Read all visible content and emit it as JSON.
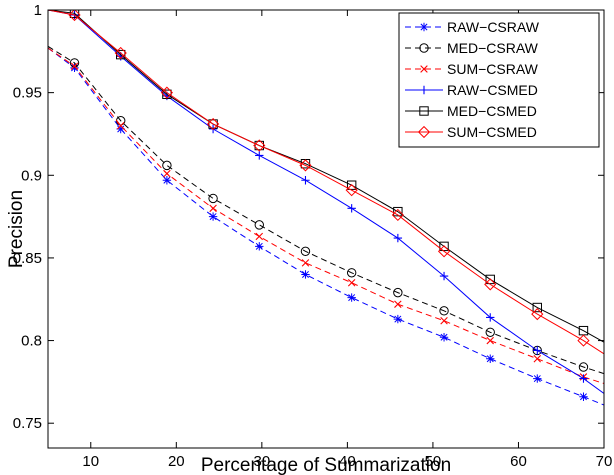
{
  "chart_data": {
    "type": "line",
    "title": "",
    "xlabel": "Percentage of Summarization",
    "ylabel": "Precision",
    "xlim": [
      5,
      70
    ],
    "ylim": [
      0.735,
      1.0
    ],
    "xticks": [
      10,
      20,
      30,
      40,
      50,
      60,
      70
    ],
    "xtick_labels": [
      "10",
      "20",
      "30",
      "40",
      "50",
      "60",
      "70"
    ],
    "yticks": [
      0.75,
      0.8,
      0.85,
      0.9,
      0.95,
      1.0
    ],
    "ytick_labels": [
      "0.75",
      "0.8",
      "0.85",
      "0.9",
      "0.95",
      "1"
    ],
    "grid": false,
    "legend_position": "top-right",
    "x": [
      5,
      8.1,
      13.5,
      18.9,
      24.3,
      29.7,
      35.1,
      40.5,
      45.9,
      51.3,
      56.7,
      62.2,
      67.6,
      70
    ],
    "marker_index_range": [
      1,
      12
    ],
    "series": [
      {
        "name": "RAW−CSRAW",
        "color": "#0000ff",
        "dash": "dashed",
        "marker": "star",
        "values": [
          0.977,
          0.965,
          0.928,
          0.897,
          0.875,
          0.857,
          0.84,
          0.826,
          0.813,
          0.802,
          0.789,
          0.777,
          0.766,
          0.761
        ]
      },
      {
        "name": "MED−CSRAW",
        "color": "#000000",
        "dash": "dashed",
        "marker": "circle",
        "values": [
          0.978,
          0.968,
          0.933,
          0.906,
          0.886,
          0.87,
          0.854,
          0.841,
          0.829,
          0.818,
          0.805,
          0.794,
          0.784,
          0.78
        ]
      },
      {
        "name": "SUM−CSRAW",
        "color": "#ff0000",
        "dash": "dashed",
        "marker": "x",
        "values": [
          0.977,
          0.966,
          0.93,
          0.901,
          0.88,
          0.863,
          0.847,
          0.835,
          0.822,
          0.812,
          0.8,
          0.789,
          0.778,
          0.774
        ]
      },
      {
        "name": "RAW−CSMED",
        "color": "#0000ff",
        "dash": "solid",
        "marker": "plus",
        "values": [
          1.0,
          0.997,
          0.972,
          0.948,
          0.928,
          0.912,
          0.897,
          0.88,
          0.862,
          0.839,
          0.814,
          0.794,
          0.777,
          0.768
        ]
      },
      {
        "name": "MED−CSMED",
        "color": "#000000",
        "dash": "solid",
        "marker": "square",
        "values": [
          1.0,
          0.998,
          0.973,
          0.949,
          0.931,
          0.918,
          0.907,
          0.894,
          0.878,
          0.857,
          0.837,
          0.82,
          0.806,
          0.799
        ]
      },
      {
        "name": "SUM−CSMED",
        "color": "#ff0000",
        "dash": "solid",
        "marker": "diamond",
        "values": [
          1.0,
          0.997,
          0.974,
          0.95,
          0.931,
          0.918,
          0.906,
          0.891,
          0.876,
          0.854,
          0.834,
          0.816,
          0.8,
          0.792
        ]
      }
    ]
  }
}
